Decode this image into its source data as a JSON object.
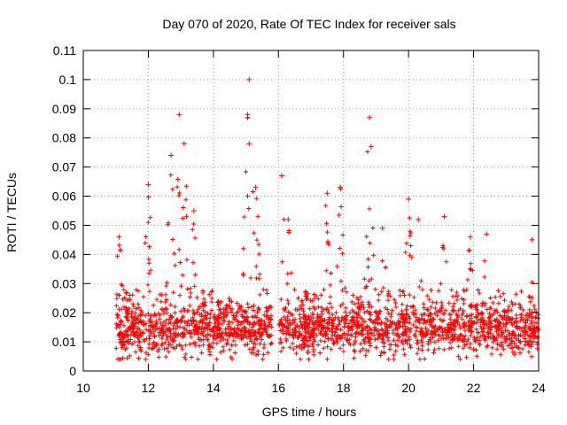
{
  "chart_data": {
    "type": "scatter",
    "title": "Day 070 of 2020, Rate Of TEC Index for receiver sals",
    "xlabel": "GPS time / hours",
    "ylabel": "ROTI / TECUs",
    "xlim": [
      10,
      24
    ],
    "ylim": [
      0,
      0.11
    ],
    "x_ticks": [
      10,
      12,
      14,
      16,
      18,
      20,
      22,
      24
    ],
    "x_tick_labels": [
      "10",
      "12",
      "14",
      "16",
      "18",
      "20",
      "22",
      "24"
    ],
    "y_ticks": [
      0,
      0.01,
      0.02,
      0.03,
      0.04,
      0.05,
      0.06,
      0.07,
      0.08,
      0.09,
      0.1,
      0.11
    ],
    "y_tick_labels": [
      "0",
      "0.01",
      "0.02",
      "0.03",
      "0.04",
      "0.05",
      "0.06",
      "0.07",
      "0.08",
      "0.09",
      "0.1",
      "0.11"
    ],
    "grid": true,
    "marker": "+",
    "color": "#ff0000",
    "legend": "none",
    "data_coverage_hours": [
      11.0,
      24.0
    ],
    "gap_hours": [
      15.8,
      16.0
    ],
    "peaks": [
      {
        "x": 11.1,
        "y": 0.046
      },
      {
        "x": 12.0,
        "y": 0.064
      },
      {
        "x": 12.7,
        "y": 0.074
      },
      {
        "x": 12.95,
        "y": 0.088
      },
      {
        "x": 13.1,
        "y": 0.078
      },
      {
        "x": 13.4,
        "y": 0.055
      },
      {
        "x": 15.1,
        "y": 0.1
      },
      {
        "x": 15.05,
        "y": 0.088
      },
      {
        "x": 15.1,
        "y": 0.078
      },
      {
        "x": 15.3,
        "y": 0.063
      },
      {
        "x": 16.1,
        "y": 0.067
      },
      {
        "x": 16.3,
        "y": 0.052
      },
      {
        "x": 17.5,
        "y": 0.061
      },
      {
        "x": 17.9,
        "y": 0.063
      },
      {
        "x": 18.8,
        "y": 0.087
      },
      {
        "x": 18.85,
        "y": 0.077
      },
      {
        "x": 19.2,
        "y": 0.049
      },
      {
        "x": 20.0,
        "y": 0.059
      },
      {
        "x": 20.3,
        "y": 0.052
      },
      {
        "x": 21.1,
        "y": 0.053
      },
      {
        "x": 21.9,
        "y": 0.046
      },
      {
        "x": 22.4,
        "y": 0.047
      },
      {
        "x": 23.8,
        "y": 0.045
      }
    ]
  }
}
